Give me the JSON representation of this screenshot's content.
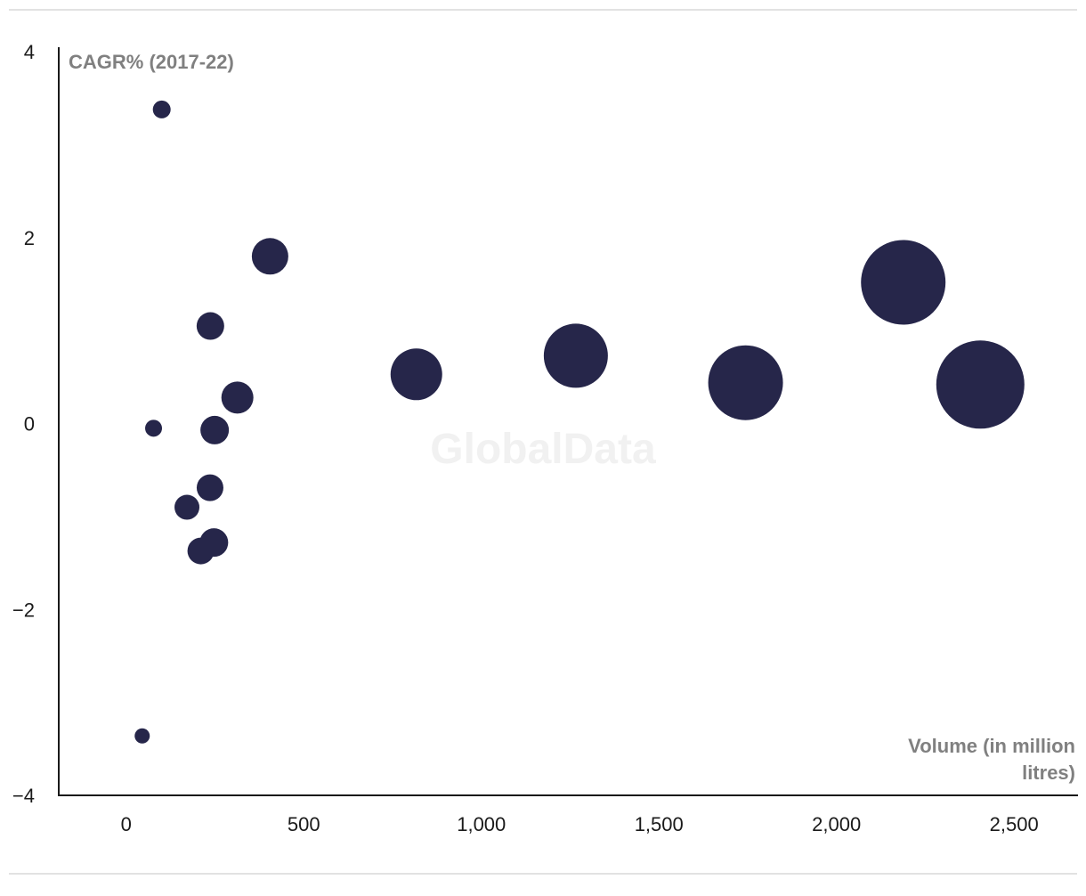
{
  "watermark": "GlobalData",
  "chart_data": {
    "type": "scatter",
    "title": "",
    "xlabel_lines": [
      "Volume (in million",
      "litres)"
    ],
    "ylabel": "CAGR% (2017-22)",
    "xlim": [
      -190,
      2680
    ],
    "ylim": [
      -4,
      4.05
    ],
    "xticks": [
      0,
      500,
      1000,
      1500,
      2000,
      2500
    ],
    "xtick_labels": [
      "0",
      "500",
      "1,000",
      "1,500",
      "2,000",
      "2,500"
    ],
    "yticks": [
      4,
      2,
      0,
      -2,
      -4
    ],
    "ytick_labels": [
      "4",
      "2",
      "0",
      "−2",
      "−4"
    ],
    "marker_color": "#26264a",
    "grid": false,
    "points": [
      {
        "x": 100,
        "y": 3.38,
        "size": 20
      },
      {
        "x": 405,
        "y": 1.8,
        "size": 41
      },
      {
        "x": 237,
        "y": 1.05,
        "size": 31
      },
      {
        "x": 313,
        "y": 0.28,
        "size": 36
      },
      {
        "x": 77,
        "y": -0.05,
        "size": 19
      },
      {
        "x": 249,
        "y": -0.07,
        "size": 32
      },
      {
        "x": 236,
        "y": -0.69,
        "size": 30
      },
      {
        "x": 171,
        "y": -0.9,
        "size": 28
      },
      {
        "x": 247,
        "y": -1.28,
        "size": 32
      },
      {
        "x": 210,
        "y": -1.37,
        "size": 30
      },
      {
        "x": 45,
        "y": -3.36,
        "size": 17
      },
      {
        "x": 817,
        "y": 0.53,
        "size": 58
      },
      {
        "x": 1266,
        "y": 0.73,
        "size": 72
      },
      {
        "x": 1744,
        "y": 0.44,
        "size": 84
      },
      {
        "x": 2188,
        "y": 1.52,
        "size": 95
      },
      {
        "x": 2405,
        "y": 0.42,
        "size": 99
      }
    ]
  }
}
